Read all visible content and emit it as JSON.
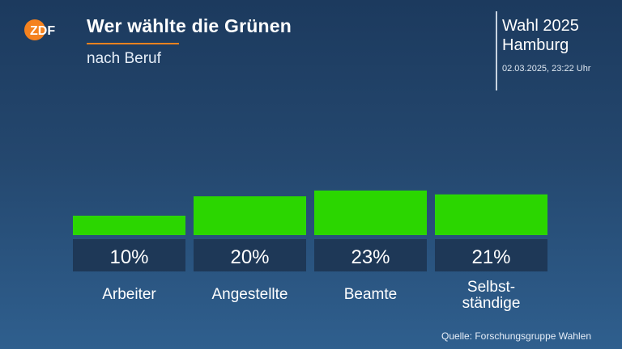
{
  "header": {
    "logo_text": "ZDF",
    "title": "Wer wählte die Grünen",
    "subtitle": "nach Beruf",
    "election_title": "Wahl 2025",
    "election_region": "Hamburg",
    "timestamp": "02.03.2025, 23:22 Uhr"
  },
  "source": "Quelle: Forschungsgruppe Wahlen",
  "colors": {
    "bar": "#2bd600",
    "label_box": "#1e3857",
    "accent": "#f5821f",
    "logo": "#f5821f"
  },
  "chart_data": {
    "type": "bar",
    "categories": [
      "Arbeiter",
      "Angestellte",
      "Beamte",
      "Selbst-\nständige"
    ],
    "values": [
      10,
      20,
      23,
      21
    ],
    "value_labels": [
      "10%",
      "20%",
      "23%",
      "21%"
    ],
    "title": "Wer wählte die Grünen",
    "subtitle": "nach Beruf",
    "unit": "%",
    "ylim": [
      0,
      100
    ],
    "grid": false,
    "legend": "none"
  }
}
